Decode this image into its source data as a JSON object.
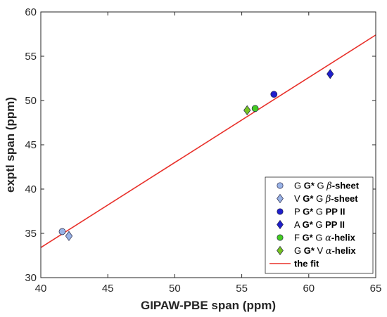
{
  "chart_data": {
    "type": "scatter",
    "title": "",
    "xlabel": "GIPAW-PBE span (ppm)",
    "ylabel": "exptl span (ppm)",
    "xlim": [
      40,
      65
    ],
    "ylim": [
      30,
      60
    ],
    "xticks": [
      40,
      45,
      50,
      55,
      60,
      65
    ],
    "yticks": [
      30,
      35,
      40,
      45,
      50,
      55,
      60
    ],
    "grid": false,
    "legend_position": "bottom-right",
    "series": [
      {
        "name": "G G* G β-sheet",
        "name_parts": [
          "G ",
          "G*",
          " G ",
          "β",
          "-sheet"
        ],
        "marker": "circle",
        "color": "#99b3e6",
        "points": [
          {
            "x": 41.6,
            "y": 35.2
          }
        ]
      },
      {
        "name": "V G* G β-sheet",
        "name_parts": [
          "V ",
          "G*",
          " G ",
          "β",
          "-sheet"
        ],
        "marker": "diamond",
        "color": "#99b3e6",
        "points": [
          {
            "x": 42.1,
            "y": 34.7
          }
        ]
      },
      {
        "name": "P G* G PP II",
        "name_parts": [
          "P ",
          "G*",
          " G ",
          "",
          "PP II"
        ],
        "marker": "circle",
        "color": "#1f1fcc",
        "points": [
          {
            "x": 57.4,
            "y": 50.7
          }
        ]
      },
      {
        "name": "A G* G PP II",
        "name_parts": [
          "A ",
          "G*",
          " G ",
          "",
          "PP II"
        ],
        "marker": "diamond",
        "color": "#1f1fcc",
        "points": [
          {
            "x": 61.6,
            "y": 53.0
          }
        ]
      },
      {
        "name": "F G* G α-helix",
        "name_parts": [
          "F ",
          "G*",
          " G ",
          "α",
          "-helix"
        ],
        "marker": "circle",
        "color": "#44cc22",
        "points": [
          {
            "x": 56.0,
            "y": 49.1
          }
        ]
      },
      {
        "name": "G G* V α-helix",
        "name_parts": [
          "G ",
          "G*",
          " V ",
          "α",
          "-helix"
        ],
        "marker": "diamond",
        "color": "#77c422",
        "points": [
          {
            "x": 55.4,
            "y": 48.9
          }
        ]
      }
    ],
    "fit": {
      "name": "the fit",
      "color": "#e8302a",
      "points": [
        {
          "x": 40,
          "y": 33.4
        },
        {
          "x": 65,
          "y": 57.4
        }
      ]
    }
  }
}
